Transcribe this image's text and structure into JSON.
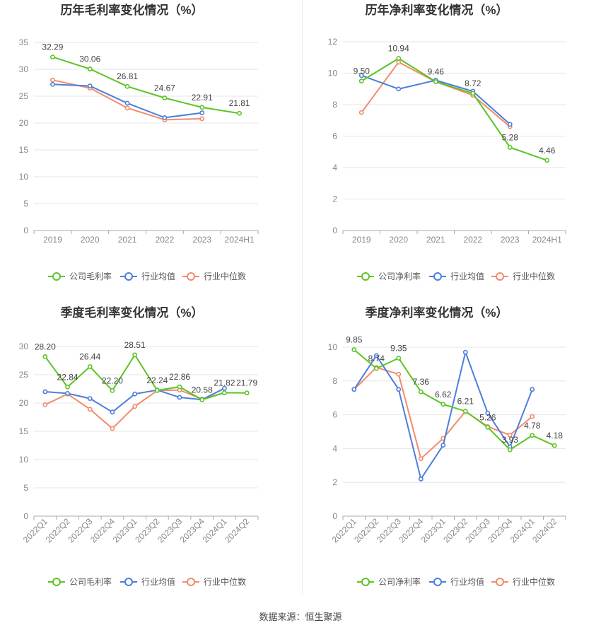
{
  "source_label": "数据来源：恒生聚源",
  "colors": {
    "company": "#5cc424",
    "avg": "#4c7edb",
    "median": "#f28b6b",
    "grid": "#e6e6e6",
    "axis": "#aaaaaa",
    "tick": "#888888",
    "label": "#444444",
    "title": "#333333"
  },
  "chart_data": [
    {
      "type": "line",
      "title": "历年毛利率变化情况（%）",
      "categories": [
        "2019",
        "2020",
        "2021",
        "2022",
        "2023",
        "2024H1"
      ],
      "ylim": [
        0,
        35
      ],
      "yticks": [
        0,
        5,
        10,
        15,
        20,
        25,
        30,
        35
      ],
      "legend_position": "bottom",
      "series": [
        {
          "name": "公司毛利率",
          "key": "company",
          "values": [
            32.29,
            30.06,
            26.81,
            24.67,
            22.91,
            21.81
          ],
          "labels": [
            "32.29",
            "30.06",
            "26.81",
            "24.67",
            "22.91",
            "21.81"
          ]
        },
        {
          "name": "行业均值",
          "key": "avg",
          "values": [
            27.2,
            26.9,
            23.7,
            21.0,
            21.9,
            null
          ]
        },
        {
          "name": "行业中位数",
          "key": "median",
          "values": [
            28.0,
            26.5,
            22.8,
            20.6,
            20.8,
            null
          ]
        }
      ]
    },
    {
      "type": "line",
      "title": "历年净利率变化情况（%）",
      "categories": [
        "2019",
        "2020",
        "2021",
        "2022",
        "2023",
        "2024H1"
      ],
      "ylim": [
        0,
        12
      ],
      "yticks": [
        0,
        2,
        4,
        6,
        8,
        10,
        12
      ],
      "legend_position": "bottom",
      "series": [
        {
          "name": "公司净利率",
          "key": "company",
          "values": [
            9.5,
            10.94,
            9.46,
            8.72,
            5.28,
            4.46
          ],
          "labels": [
            "9.50",
            "10.94",
            "9.46",
            "8.72",
            "5.28",
            "4.46"
          ]
        },
        {
          "name": "行业均值",
          "key": "avg",
          "values": [
            9.85,
            9.0,
            9.55,
            8.85,
            6.75,
            null
          ]
        },
        {
          "name": "行业中位数",
          "key": "median",
          "values": [
            7.5,
            10.7,
            9.45,
            8.6,
            6.6,
            null
          ]
        }
      ]
    },
    {
      "type": "line",
      "title": "季度毛利率变化情况（%）",
      "categories": [
        "2022Q1",
        "2022Q2",
        "2022Q3",
        "2022Q4",
        "2023Q1",
        "2023Q2",
        "2023Q3",
        "2023Q4",
        "2024Q1",
        "2024Q2"
      ],
      "rotate_ticks": true,
      "ylim": [
        0,
        30
      ],
      "yticks": [
        0,
        5,
        10,
        15,
        20,
        25,
        30
      ],
      "legend_position": "bottom",
      "series": [
        {
          "name": "公司毛利率",
          "key": "company",
          "values": [
            28.2,
            22.84,
            26.44,
            22.2,
            28.51,
            22.24,
            22.86,
            20.58,
            21.82,
            21.79
          ],
          "labels": [
            "28.20",
            "22.84",
            "26.44",
            "22.20",
            "28.51",
            "22.24",
            "22.86",
            "20.58",
            "21.82",
            "21.79"
          ]
        },
        {
          "name": "行业均值",
          "key": "avg",
          "values": [
            22.0,
            21.7,
            20.8,
            18.4,
            21.6,
            22.3,
            21.0,
            20.6,
            22.6,
            null
          ]
        },
        {
          "name": "行业中位数",
          "key": "median",
          "values": [
            19.7,
            21.6,
            18.9,
            15.5,
            19.4,
            22.2,
            22.3,
            20.7,
            21.8,
            null
          ]
        }
      ]
    },
    {
      "type": "line",
      "title": "季度净利率变化情况（%）",
      "categories": [
        "2022Q1",
        "2022Q2",
        "2022Q3",
        "2022Q4",
        "2023Q1",
        "2023Q2",
        "2023Q3",
        "2023Q4",
        "2024Q1",
        "2024Q2"
      ],
      "rotate_ticks": true,
      "ylim": [
        0,
        10
      ],
      "yticks": [
        0,
        2,
        4,
        6,
        8,
        10
      ],
      "legend_position": "bottom",
      "series": [
        {
          "name": "公司净利率",
          "key": "company",
          "values": [
            9.85,
            8.74,
            9.35,
            7.36,
            6.62,
            6.21,
            5.26,
            3.93,
            4.78,
            4.18
          ],
          "labels": [
            "9.85",
            "8.74",
            "9.35",
            "7.36",
            "6.62",
            "6.21",
            "5.26",
            "3.93",
            "4.78",
            "4.18"
          ]
        },
        {
          "name": "行业均值",
          "key": "avg",
          "values": [
            7.5,
            9.5,
            7.5,
            2.2,
            4.2,
            9.7,
            6.1,
            4.1,
            7.5,
            null
          ]
        },
        {
          "name": "行业中位数",
          "key": "median",
          "values": [
            7.5,
            8.8,
            8.4,
            3.4,
            4.6,
            6.2,
            5.3,
            4.8,
            5.9,
            null
          ]
        }
      ]
    }
  ]
}
